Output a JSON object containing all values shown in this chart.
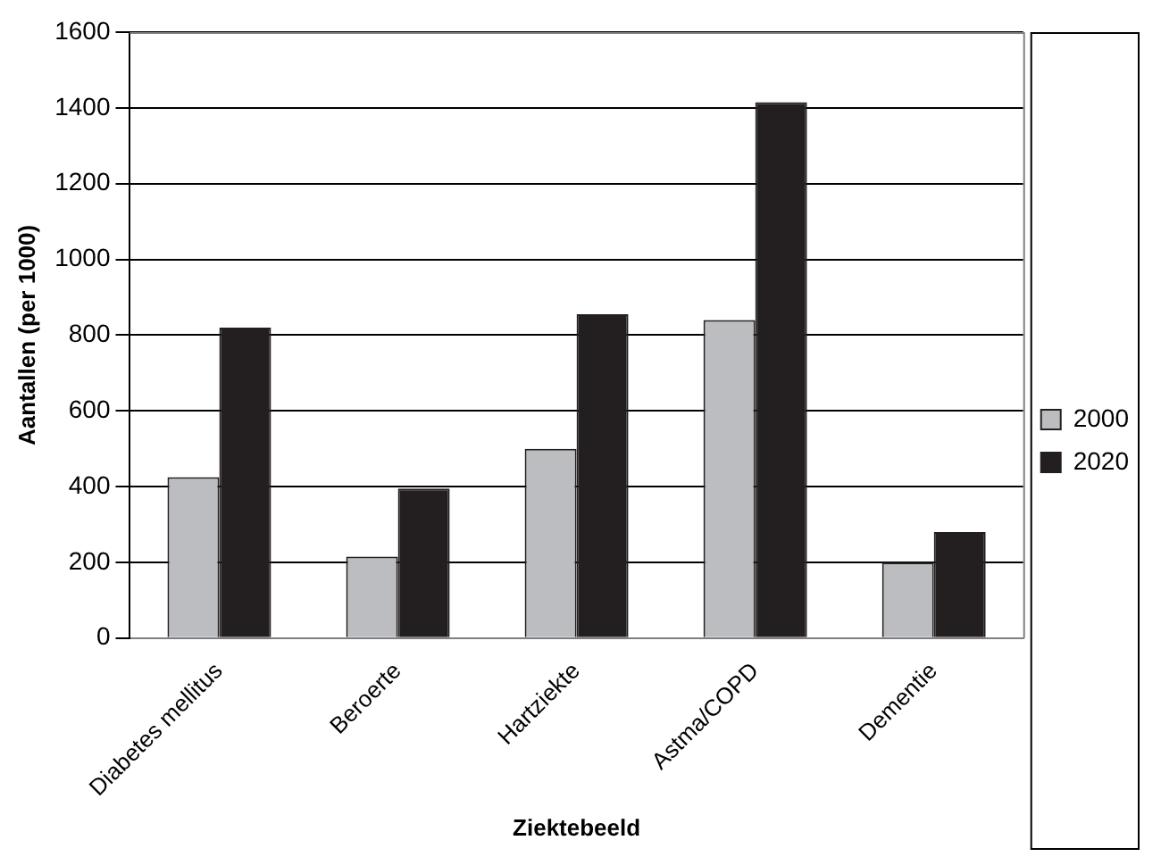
{
  "chart_data": {
    "type": "bar",
    "xlabel": "Ziektebeeld",
    "ylabel": "Aantallen (per 1000)",
    "categories": [
      "Diabetes mellitus",
      "Beroerte",
      "Hartziekte",
      "Astma/COPD",
      "Dementie"
    ],
    "series": [
      {
        "name": "2000",
        "color": "#bcbdc0",
        "values": [
          425,
          215,
          500,
          840,
          200
        ]
      },
      {
        "name": "2020",
        "color": "#231f20",
        "values": [
          820,
          395,
          855,
          1415,
          280
        ]
      }
    ],
    "ylim": [
      0,
      1600
    ],
    "yticks": [
      0,
      200,
      400,
      600,
      800,
      1000,
      1200,
      1400,
      1600
    ],
    "grid": "y",
    "legend": "right"
  }
}
